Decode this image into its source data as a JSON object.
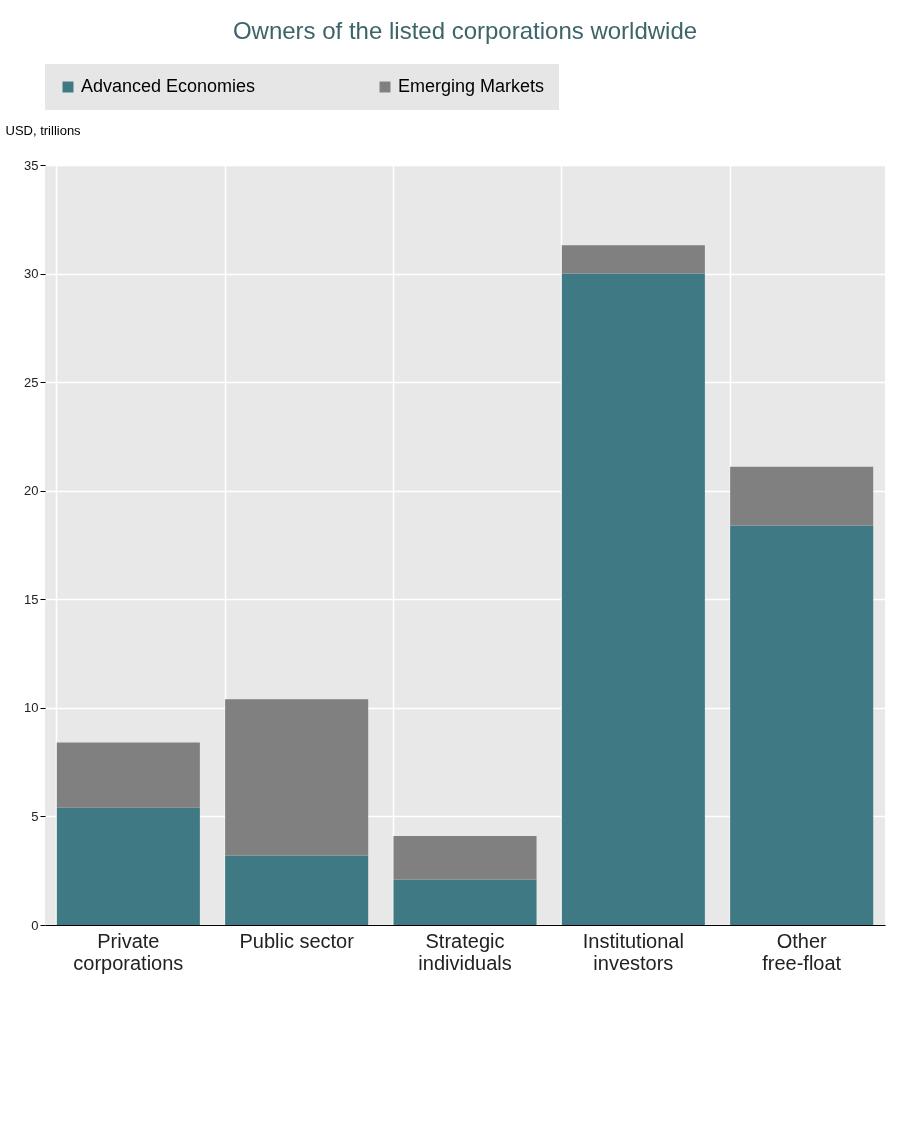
{
  "chart_data": {
    "type": "bar",
    "title": "Owners of the listed corporations worldwide",
    "ylabel": "USD, trillions",
    "categories": [
      "Private corporations",
      "Public sector",
      "Strategic individuals",
      "Institutional investors",
      "Other free-float"
    ],
    "series": [
      {
        "name": "Advanced Economies",
        "color": "#3f7a84",
        "values": [
          5.4,
          3.2,
          2.1,
          30.0,
          18.4
        ]
      },
      {
        "name": "Emerging Markets",
        "color": "#808080",
        "values": [
          3.0,
          7.2,
          2.0,
          1.3,
          2.7
        ]
      }
    ],
    "stacked": true,
    "ylim": [
      0,
      35
    ],
    "yticks": [
      0,
      5,
      10,
      15,
      20,
      25,
      30,
      35
    ],
    "grid": true,
    "legend": "top"
  }
}
